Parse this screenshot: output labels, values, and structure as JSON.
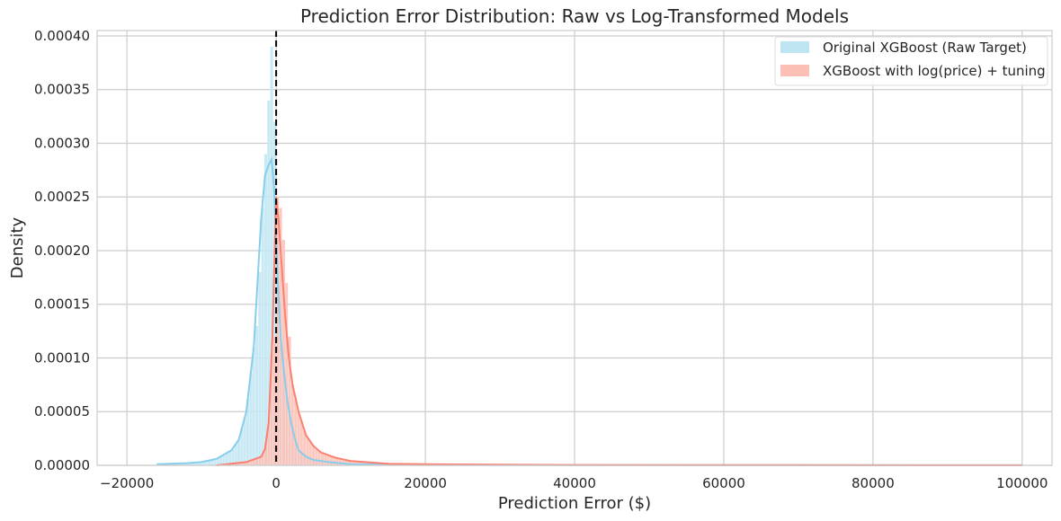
{
  "chart_data": {
    "type": "histogram",
    "title": "Prediction Error Distribution: Raw vs Log-Transformed Models",
    "xlabel": "Prediction Error ($)",
    "ylabel": "Density",
    "xlim": [
      -24000,
      104000
    ],
    "ylim": [
      0,
      0.000405
    ],
    "x_ticks": [
      -20000,
      0,
      20000,
      40000,
      60000,
      80000,
      100000
    ],
    "x_tick_labels": [
      "−20000",
      "0",
      "20000",
      "40000",
      "60000",
      "80000",
      "100000"
    ],
    "y_ticks": [
      0,
      5e-05,
      0.0001,
      0.00015,
      0.0002,
      0.00025,
      0.0003,
      0.00035,
      0.0004
    ],
    "y_tick_labels": [
      "0.00000",
      "0.00005",
      "0.00010",
      "0.00015",
      "0.00020",
      "0.00025",
      "0.00030",
      "0.00035",
      "0.00040"
    ],
    "grid": true,
    "legend_position": "top-right",
    "reference_line": {
      "x": 0,
      "style": "dashed",
      "color": "#000000"
    },
    "bin_width": 400,
    "series": [
      {
        "name": "Original XGBoost (Raw Target)",
        "hist_color": "#bfe5f2",
        "kde_color": "#87ceeb",
        "kde_points": [
          [
            -16000,
            1e-06
          ],
          [
            -12000,
            2e-06
          ],
          [
            -10000,
            3e-06
          ],
          [
            -8000,
            6e-06
          ],
          [
            -6000,
            1.4e-05
          ],
          [
            -5000,
            2.4e-05
          ],
          [
            -4000,
            5e-05
          ],
          [
            -3000,
            0.00011
          ],
          [
            -2500,
            0.00017
          ],
          [
            -2000,
            0.00023
          ],
          [
            -1500,
            0.00027
          ],
          [
            -1000,
            0.00028
          ],
          [
            -600,
            0.000285
          ],
          [
            -300,
            0.00026
          ],
          [
            0,
            0.00021
          ],
          [
            300,
            0.00016
          ],
          [
            600,
            0.00012
          ],
          [
            1000,
            9e-05
          ],
          [
            1500,
            6e-05
          ],
          [
            2000,
            4e-05
          ],
          [
            2500,
            2.5e-05
          ],
          [
            3000,
            1.4e-05
          ],
          [
            4000,
            8e-06
          ],
          [
            5000,
            5e-06
          ],
          [
            7000,
            3e-06
          ],
          [
            10000,
            1e-06
          ],
          [
            20000,
            3e-07
          ],
          [
            50000,
            2e-07
          ],
          [
            100000,
            1e-07
          ]
        ],
        "hist_peaks": [
          [
            -2800,
            0.00013
          ],
          [
            -2400,
            0.00018
          ],
          [
            -2000,
            0.00024
          ],
          [
            -1600,
            0.00029
          ],
          [
            -1200,
            0.00034
          ],
          [
            -800,
            0.00039
          ],
          [
            -400,
            0.00032
          ],
          [
            0,
            0.00021
          ],
          [
            400,
            0.00015
          ]
        ]
      },
      {
        "name": "XGBoost with log(price) + tuning",
        "hist_color": "#fbbfb5",
        "kde_color": "#fa8072",
        "kde_points": [
          [
            -8000,
            0.0
          ],
          [
            -4000,
            3e-06
          ],
          [
            -2000,
            8e-06
          ],
          [
            -1500,
            1.5e-05
          ],
          [
            -1000,
            4e-05
          ],
          [
            -500,
            0.00012
          ],
          [
            -200,
            0.0002
          ],
          [
            0,
            0.00025
          ],
          [
            300,
            0.00023
          ],
          [
            700,
            0.00019
          ],
          [
            1200,
            0.00014
          ],
          [
            1700,
            0.0001
          ],
          [
            2200,
            7.5e-05
          ],
          [
            3000,
            5e-05
          ],
          [
            4000,
            2.8e-05
          ],
          [
            5000,
            1.8e-05
          ],
          [
            6000,
            1.2e-05
          ],
          [
            8000,
            7e-06
          ],
          [
            10000,
            4e-06
          ],
          [
            12000,
            3e-06
          ],
          [
            15000,
            1.5e-06
          ],
          [
            20000,
            1e-06
          ],
          [
            40000,
            3e-07
          ],
          [
            100000,
            1e-07
          ]
        ],
        "hist_peaks": [
          [
            -400,
            0.00012
          ],
          [
            0,
            0.00025
          ],
          [
            400,
            0.00024
          ],
          [
            800,
            0.00021
          ],
          [
            1200,
            0.00017
          ],
          [
            1600,
            0.00012
          ]
        ]
      }
    ]
  }
}
